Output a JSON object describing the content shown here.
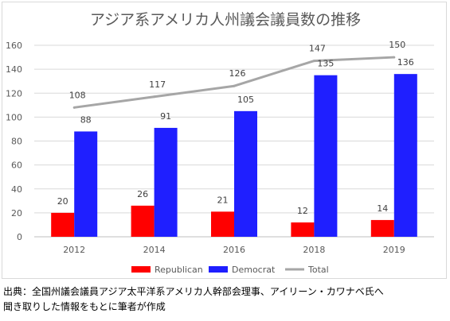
{
  "chart_data": {
    "type": "bar",
    "title": "アジア系アメリカ人州議会議員数の推移",
    "xlabel": "",
    "ylabel": "",
    "categories": [
      "2012",
      "2014",
      "2016",
      "2018",
      "2019"
    ],
    "ylim": [
      0,
      160
    ],
    "yticks": [
      0,
      20,
      40,
      60,
      80,
      100,
      120,
      140,
      160
    ],
    "grid": true,
    "legend_position": "bottom",
    "series": [
      {
        "name": "Republican",
        "kind": "bar",
        "color": "#ff0000",
        "values": [
          20,
          26,
          21,
          12,
          14
        ]
      },
      {
        "name": "Democrat",
        "kind": "bar",
        "color": "#1f1fff",
        "values": [
          88,
          91,
          105,
          135,
          136
        ]
      },
      {
        "name": "Total",
        "kind": "line",
        "color": "#a6a6a6",
        "values": [
          108,
          117,
          126,
          147,
          150
        ]
      }
    ]
  },
  "source": {
    "line1": "出典：全国州議会議員アジア太平洋系アメリカ人幹部会理事、アイリーン・カワナベ氏へ",
    "line2": "聞き取りした情報をもとに筆者が作成"
  }
}
